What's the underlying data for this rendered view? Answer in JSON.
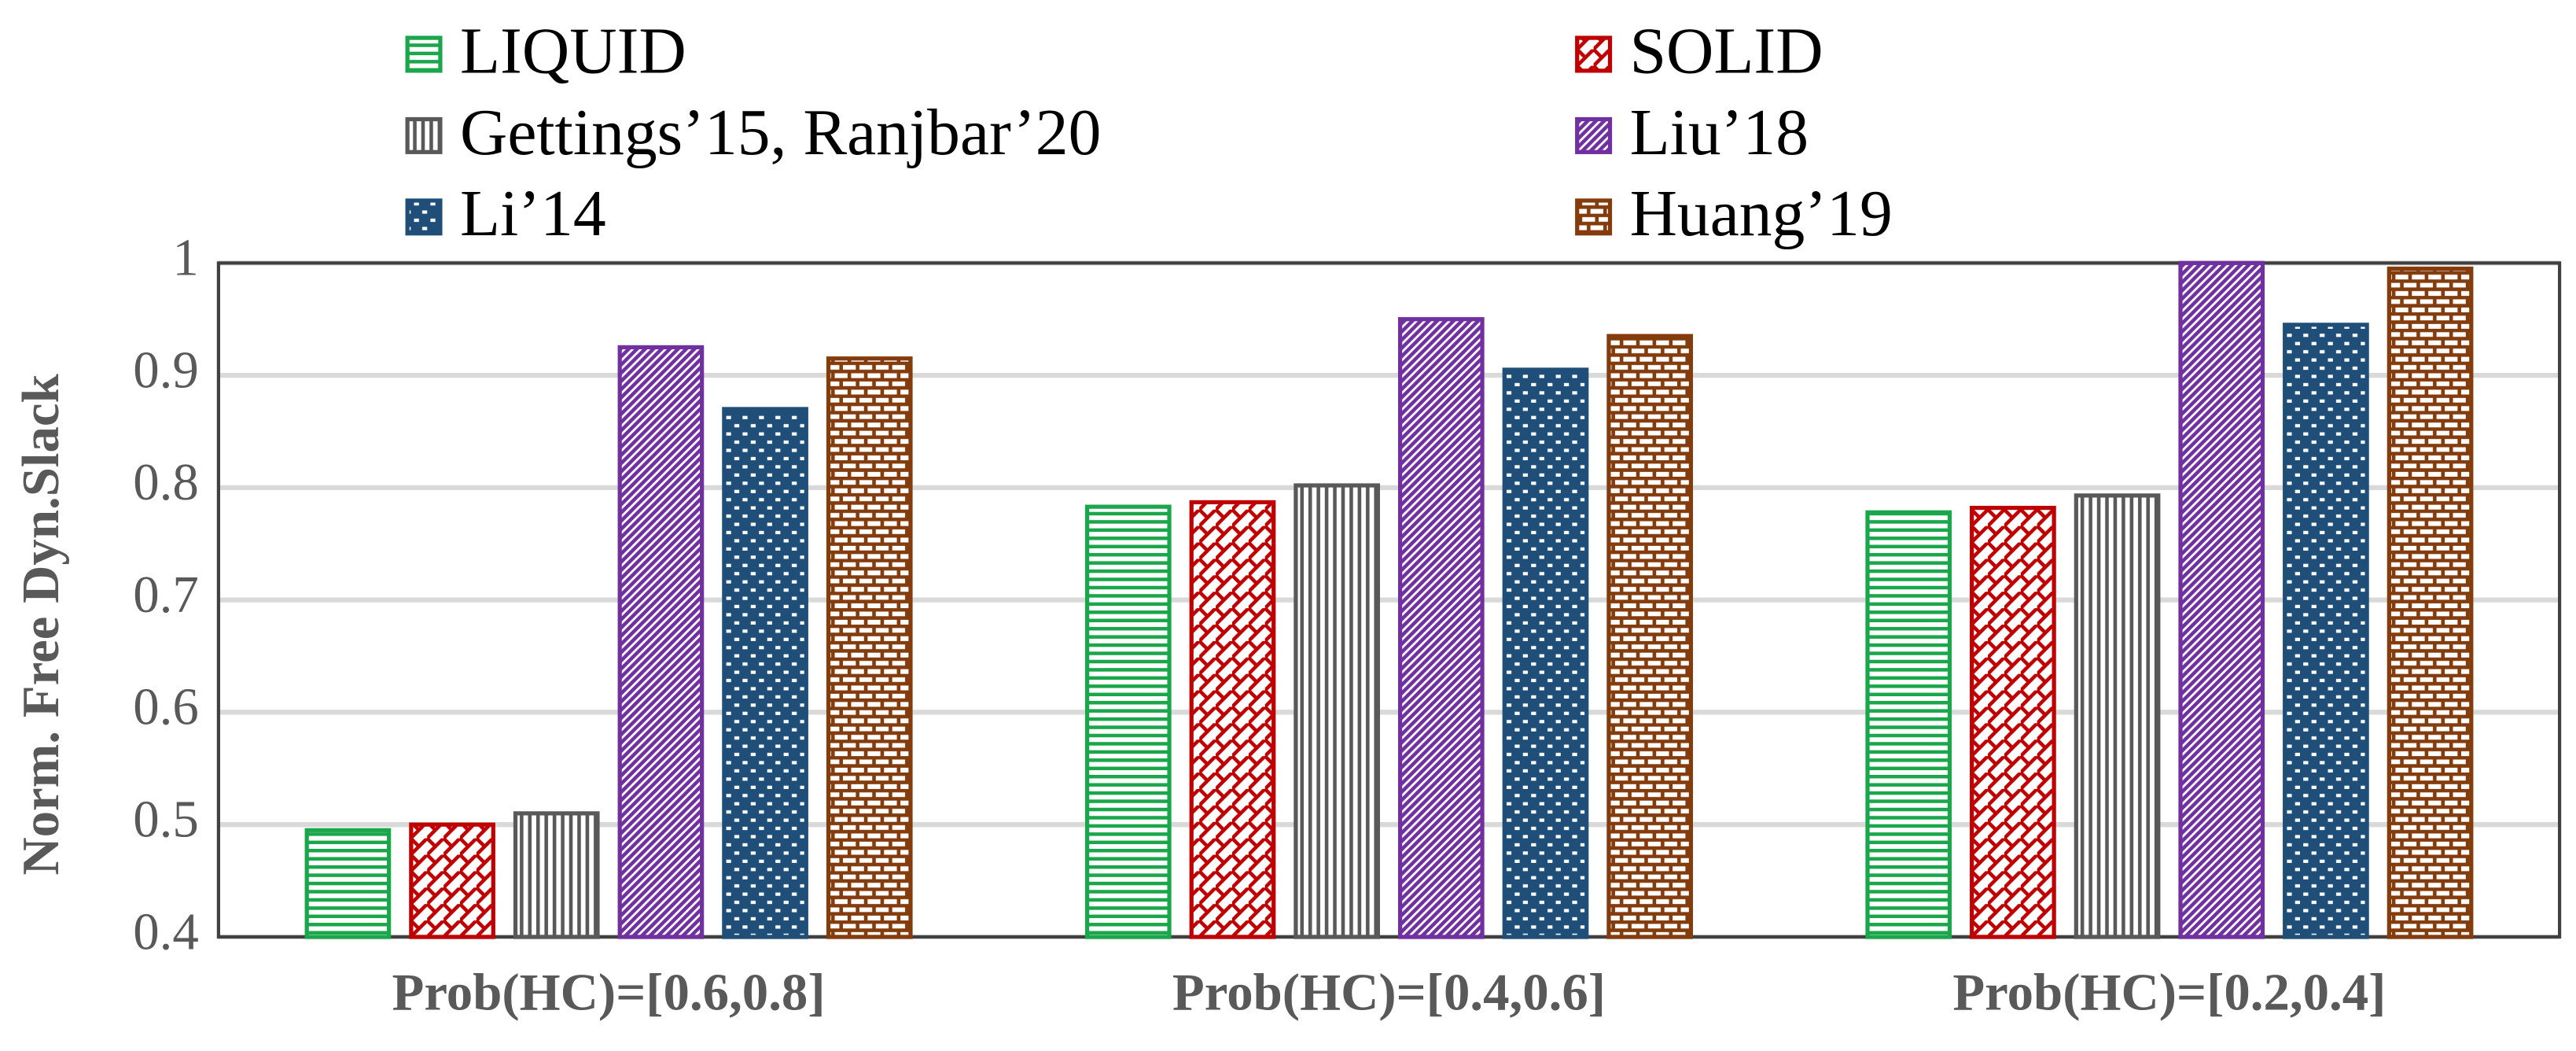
{
  "chart_data": {
    "type": "bar",
    "y_label": "Norm. Free Dyn.Slack",
    "categories": [
      "Prob(HC)=[0.6,0.8]",
      "Prob(HC)=[0.4,0.6]",
      "Prob(HC)=[0.2,0.4]"
    ],
    "series": [
      {
        "name": "LIQUID",
        "color": "#1aa64b",
        "values": [
          0.495,
          0.783,
          0.778
        ]
      },
      {
        "name": "SOLID",
        "color": "#c00000",
        "values": [
          0.5,
          0.787,
          0.782
        ]
      },
      {
        "name": "Gettings’15, Ranjbar’20",
        "color": "#595959",
        "values": [
          0.51,
          0.802,
          0.793
        ]
      },
      {
        "name": "Liu’18",
        "color": "#7030a0",
        "values": [
          0.925,
          0.95,
          1.0
        ]
      },
      {
        "name": "Li’14",
        "color": "#1f4e79",
        "values": [
          0.87,
          0.905,
          0.945
        ]
      },
      {
        "name": "Huang’19",
        "color": "#843c0c",
        "values": [
          0.915,
          0.935,
          0.995
        ]
      }
    ],
    "ylim": [
      0.4,
      1
    ],
    "yticks": [
      0.4,
      0.5,
      0.6,
      0.7,
      0.8,
      0.9,
      1
    ],
    "grid": true
  }
}
